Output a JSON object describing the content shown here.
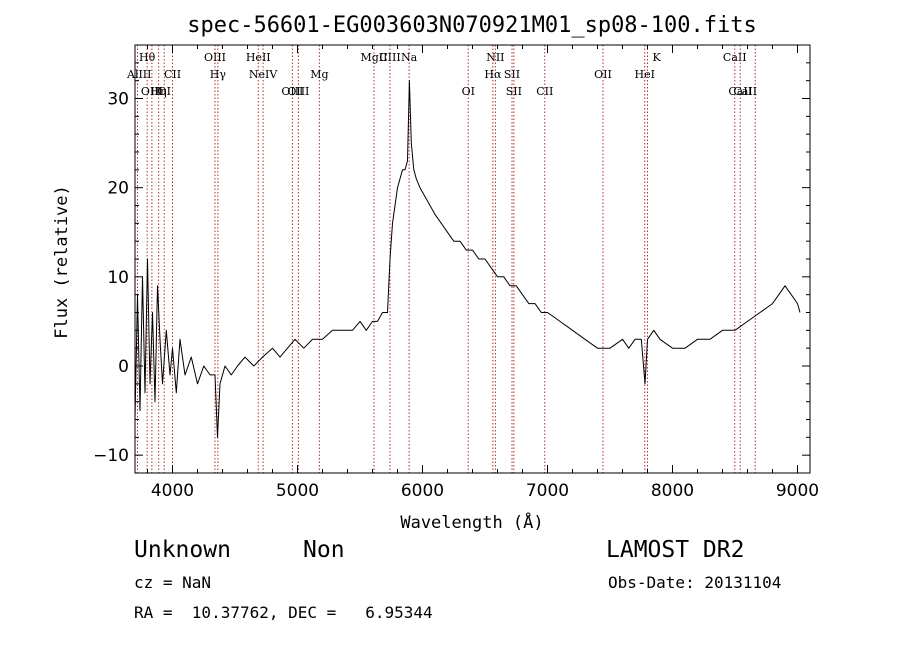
{
  "chart_data": {
    "type": "line",
    "title": "spec-56601-EG003603N070921M01_sp08-100.fits",
    "xlabel": "Wavelength (Å)",
    "ylabel": "Flux (relative)",
    "xlim": [
      3700,
      9100
    ],
    "ylim": [
      -12,
      36
    ],
    "xticks": [
      4000,
      5000,
      6000,
      7000,
      8000,
      9000
    ],
    "yticks": [
      -10,
      0,
      10,
      20,
      30
    ],
    "grid": false,
    "series": [
      {
        "x": [
          3700,
          3720,
          3740,
          3760,
          3780,
          3800,
          3820,
          3840,
          3860,
          3880,
          3900,
          3920,
          3950,
          3980,
          4000,
          4030,
          4060,
          4100,
          4150,
          4200,
          4250,
          4300,
          4340,
          4360,
          4380,
          4420,
          4470,
          4520,
          4580,
          4650,
          4720,
          4800,
          4860,
          4920,
          4980,
          5050,
          5120,
          5200,
          5280,
          5360,
          5440,
          5500,
          5550,
          5600,
          5640,
          5680,
          5720,
          5740,
          5760,
          5780,
          5800,
          5820,
          5840,
          5860,
          5880,
          5895,
          5910,
          5930,
          5950,
          5980,
          6020,
          6060,
          6100,
          6150,
          6200,
          6250,
          6300,
          6350,
          6400,
          6450,
          6500,
          6550,
          6600,
          6650,
          6700,
          6750,
          6800,
          6850,
          6900,
          6950,
          7000,
          7100,
          7200,
          7300,
          7400,
          7500,
          7600,
          7650,
          7700,
          7750,
          7780,
          7800,
          7850,
          7900,
          8000,
          8100,
          8200,
          8300,
          8400,
          8500,
          8600,
          8700,
          8800,
          8850,
          8900,
          8950,
          9000,
          9020
        ],
        "y": [
          -6,
          8,
          -5,
          10,
          -3,
          12,
          -2,
          6,
          -4,
          9,
          3,
          -2,
          4,
          -1,
          2,
          -3,
          3,
          -1,
          1,
          -2,
          0,
          -1,
          -1,
          -8,
          -2,
          0,
          -1,
          0,
          1,
          0,
          1,
          2,
          1,
          2,
          3,
          2,
          3,
          3,
          4,
          4,
          4,
          5,
          4,
          5,
          5,
          6,
          6,
          12,
          16,
          18,
          20,
          21,
          22,
          22,
          23,
          32,
          25,
          22,
          21,
          20,
          19,
          18,
          17,
          16,
          15,
          14,
          14,
          13,
          13,
          12,
          12,
          11,
          10,
          10,
          9,
          9,
          8,
          7,
          7,
          6,
          6,
          5,
          4,
          3,
          2,
          2,
          3,
          2,
          3,
          3,
          -2,
          3,
          4,
          3,
          2,
          2,
          3,
          3,
          4,
          4,
          5,
          6,
          7,
          8,
          9,
          8,
          7,
          6
        ],
        "color": "#000000"
      }
    ],
    "lines": [
      {
        "w": 3720,
        "label": "AlIII",
        "row": 2,
        "anchor": "end",
        "dx": 14
      },
      {
        "w": 3797,
        "label": "Hθ",
        "row": 1,
        "anchor": "middle",
        "dx": 0
      },
      {
        "w": 3835,
        "label": "OIII",
        "row": 3,
        "anchor": "middle",
        "dx": 0
      },
      {
        "w": 3889,
        "label": "Hη",
        "row": 3,
        "anchor": "middle",
        "dx": 0
      },
      {
        "w": 3934,
        "label": "OI",
        "row": 4,
        "anchor": "middle",
        "dx": 0
      },
      {
        "w": 4000,
        "label": "CII",
        "row": 2,
        "anchor": "middle",
        "dx": 0
      },
      {
        "w": 4340,
        "label": "OIII",
        "row": 1,
        "anchor": "middle",
        "dx": 0
      },
      {
        "w": 4363,
        "label": "Hγ",
        "row": 2,
        "anchor": "middle",
        "dx": 0
      },
      {
        "w": 4686,
        "label": "HeII",
        "row": 1,
        "anchor": "middle",
        "dx": 0
      },
      {
        "w": 4725,
        "label": "NeIV",
        "row": 2,
        "anchor": "middle",
        "dx": 0
      },
      {
        "w": 4959,
        "label": "OIII",
        "row": 4,
        "anchor": "middle",
        "dx": 0
      },
      {
        "w": 5007,
        "label": "OIII",
        "row": 4,
        "anchor": "middle",
        "dx": 0
      },
      {
        "w": 5175,
        "label": "Mg",
        "row": 2,
        "anchor": "middle",
        "dx": 0
      },
      {
        "w": 5612,
        "label": "MgII",
        "row": 1,
        "anchor": "middle",
        "dx": 0
      },
      {
        "w": 5740,
        "label": "CIII",
        "row": 1,
        "anchor": "middle",
        "dx": 0
      },
      {
        "w": 5893,
        "label": "Na",
        "row": 1,
        "anchor": "middle",
        "dx": 0
      },
      {
        "w": 6366,
        "label": "OI",
        "row": 4,
        "anchor": "middle",
        "dx": 0
      },
      {
        "w": 6583,
        "label": "NII",
        "row": 1,
        "anchor": "middle",
        "dx": 0
      },
      {
        "w": 6563,
        "label": "Hα",
        "row": 2,
        "anchor": "middle",
        "dx": 0
      },
      {
        "w": 6716,
        "label": "SII",
        "row": 2,
        "anchor": "middle",
        "dx": 0
      },
      {
        "w": 6731,
        "label": "SII",
        "row": 4,
        "anchor": "middle",
        "dx": 0
      },
      {
        "w": 6978,
        "label": "CII",
        "row": 4,
        "anchor": "middle",
        "dx": 0
      },
      {
        "w": 7444,
        "label": "OII",
        "row": 2,
        "anchor": "middle",
        "dx": 0
      },
      {
        "w": 7778,
        "label": "HeI",
        "row": 2,
        "anchor": "middle",
        "dx": 0
      },
      {
        "w": 7800,
        "label": "K",
        "row": 1,
        "anchor": "start",
        "dx": 5
      },
      {
        "w": 8498,
        "label": "CaII",
        "row": 1,
        "anchor": "middle",
        "dx": 0
      },
      {
        "w": 8542,
        "label": "CaII",
        "row": 4,
        "anchor": "middle",
        "dx": 0
      },
      {
        "w": 8662,
        "label": "CaII",
        "row": 4,
        "anchor": "middle",
        "dx": -10
      }
    ]
  },
  "info": {
    "class": "Unknown",
    "subclass": "Non",
    "survey": "LAMOST DR2",
    "cz": "cz = NaN",
    "obs_date": "Obs-Date: 20131104",
    "coords": "RA =  10.37762, DEC =   6.95344"
  }
}
